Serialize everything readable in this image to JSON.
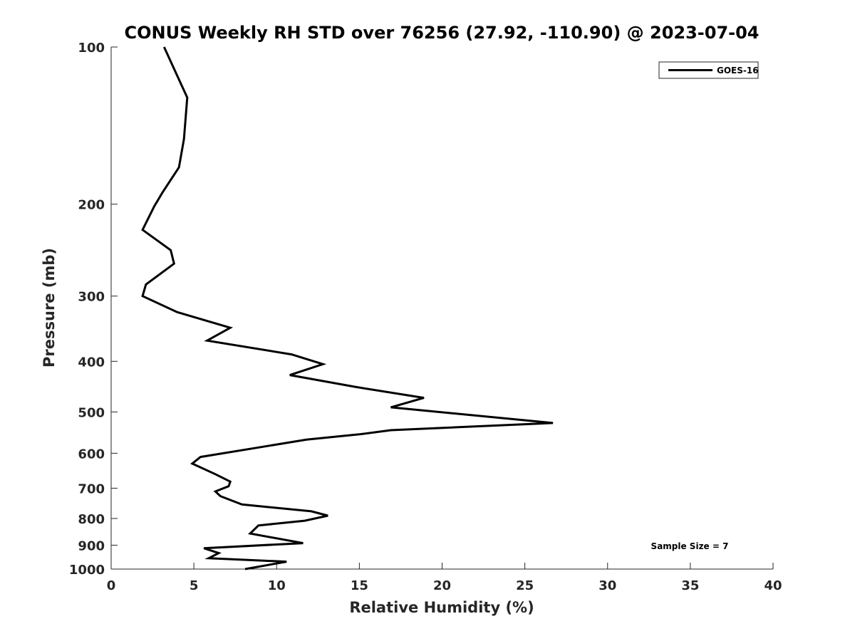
{
  "chart_data": {
    "type": "line",
    "title": "CONUS Weekly RH STD over 76256 (27.92, -110.90) @ 2023-07-04",
    "xlabel": "Relative Humidity (%)",
    "ylabel": "Pressure (mb)",
    "xlim": [
      0,
      40
    ],
    "ylim": [
      100,
      1000
    ],
    "y_scale": "log",
    "y_reversed": true,
    "grid": false,
    "legend_position": "top-right",
    "x_ticks": [
      0,
      5,
      10,
      15,
      20,
      25,
      30,
      35,
      40
    ],
    "y_ticks": [
      100,
      200,
      300,
      400,
      500,
      600,
      700,
      800,
      900,
      1000
    ],
    "series": [
      {
        "name": "GOES-16",
        "color": "#000000",
        "points": [
          [
            3.2,
            100
          ],
          [
            4.6,
            125
          ],
          [
            4.4,
            150
          ],
          [
            4.1,
            170
          ],
          [
            3.1,
            190
          ],
          [
            2.6,
            202
          ],
          [
            1.9,
            224
          ],
          [
            3.6,
            245
          ],
          [
            3.8,
            260
          ],
          [
            2.1,
            285
          ],
          [
            1.9,
            300
          ],
          [
            4.0,
            322
          ],
          [
            7.2,
            345
          ],
          [
            5.8,
            365
          ],
          [
            10.9,
            388
          ],
          [
            12.8,
            405
          ],
          [
            10.8,
            425
          ],
          [
            14.8,
            448
          ],
          [
            18.9,
            470
          ],
          [
            16.9,
            490
          ],
          [
            26.7,
            525
          ],
          [
            16.9,
            542
          ],
          [
            15.0,
            552
          ],
          [
            11.8,
            565
          ],
          [
            8.9,
            585
          ],
          [
            5.4,
            610
          ],
          [
            4.9,
            628
          ],
          [
            6.3,
            658
          ],
          [
            7.2,
            680
          ],
          [
            7.1,
            694
          ],
          [
            6.3,
            710
          ],
          [
            6.6,
            725
          ],
          [
            7.9,
            752
          ],
          [
            12.1,
            775
          ],
          [
            13.1,
            790
          ],
          [
            11.7,
            808
          ],
          [
            8.9,
            825
          ],
          [
            8.4,
            855
          ],
          [
            11.6,
            892
          ],
          [
            5.6,
            912
          ],
          [
            6.5,
            932
          ],
          [
            5.9,
            953
          ],
          [
            10.6,
            968
          ],
          [
            8.1,
            1000
          ]
        ]
      }
    ],
    "annotations": [
      "Sample Size = 7"
    ]
  }
}
